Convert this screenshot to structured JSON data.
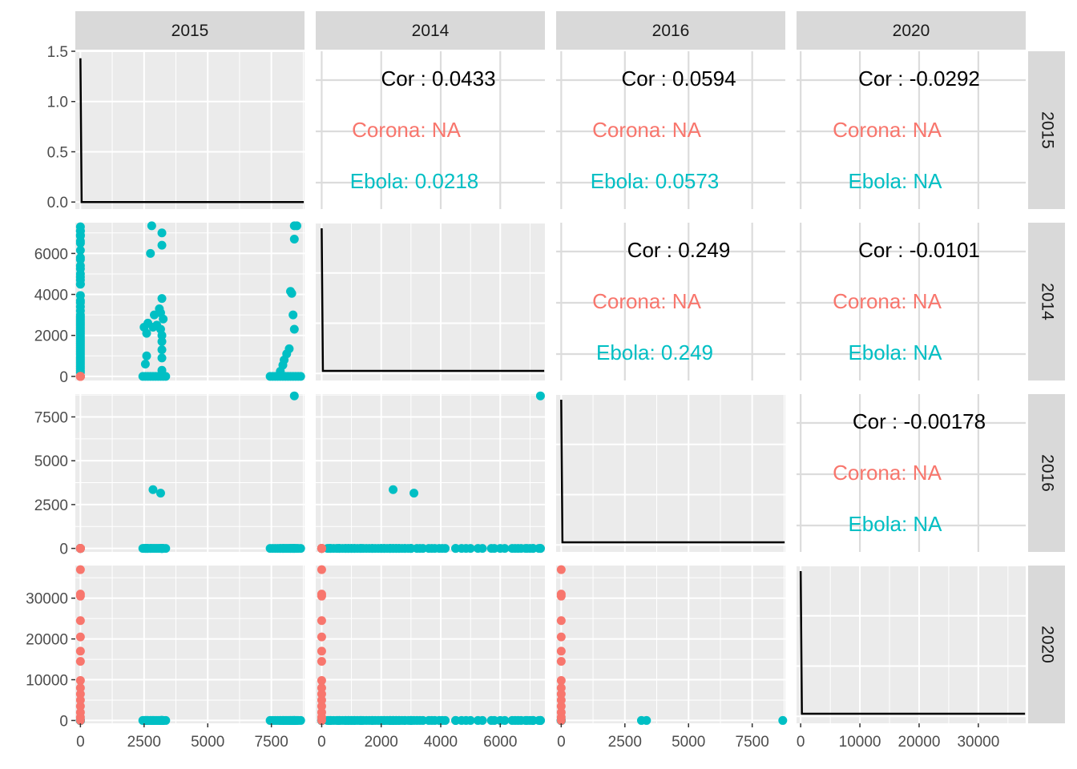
{
  "colors": {
    "panel_bg": "#ebebeb",
    "strip_bg": "#d9d9d9",
    "grid_major": "#ffffff",
    "grid_cor_panel": "#dcdcdc",
    "corona": "#f8766d",
    "ebola": "#00bfc4",
    "density_line": "#000000",
    "text": "#1a1a1a",
    "tick_text": "#4d4d4d"
  },
  "chart_data": {
    "type": "scatter",
    "variables": [
      "2015",
      "2014",
      "2016",
      "2020"
    ],
    "row_strip_labels": [
      "2015",
      "2014",
      "2016",
      "2020"
    ],
    "groups": [
      "Corona",
      "Ebola"
    ],
    "axis_ticks": {
      "2015": [
        0,
        2500,
        5000,
        7500
      ],
      "2014": [
        0,
        2000,
        4000,
        6000
      ],
      "2016": [
        0,
        2500,
        5000,
        7500
      ],
      "2020": [
        0,
        10000,
        20000,
        30000
      ]
    },
    "axis_tick_labels": {
      "2015": [
        "0",
        "2500",
        "5000",
        "7500"
      ],
      "2014": [
        "0",
        "2000",
        "4000",
        "6000"
      ],
      "2016": [
        "0",
        "2500",
        "5000",
        "7500"
      ],
      "2020": [
        "0",
        "10000",
        "20000",
        "30000"
      ]
    },
    "density_y_ticks": [
      0.0,
      0.5,
      1.0,
      1.5
    ],
    "density_y_tick_labels": [
      "0.0",
      "0.5",
      "1.0",
      "1.5"
    ],
    "correlations": [
      {
        "row": "2015",
        "col": "2014",
        "cor": "Cor : 0.0433",
        "corona": "Corona: NA",
        "ebola": "Ebola: 0.0218"
      },
      {
        "row": "2015",
        "col": "2016",
        "cor": "Cor : 0.0594",
        "corona": "Corona: NA",
        "ebola": "Ebola: 0.0573"
      },
      {
        "row": "2015",
        "col": "2020",
        "cor": "Cor : -0.0292",
        "corona": "Corona: NA",
        "ebola": "Ebola: NA"
      },
      {
        "row": "2014",
        "col": "2016",
        "cor": "Cor : 0.249",
        "corona": "Corona: NA",
        "ebola": "Ebola: 0.249"
      },
      {
        "row": "2014",
        "col": "2020",
        "cor": "Cor : -0.0101",
        "corona": "Corona: NA",
        "ebola": "Ebola: NA"
      },
      {
        "row": "2016",
        "col": "2020",
        "cor": "Cor : -0.00178",
        "corona": "Corona: NA",
        "ebola": "Ebola: NA"
      }
    ],
    "density_peaks": {
      "2015": 1.43
    },
    "observations": {
      "corona": [
        {
          "2015": 0,
          "2014": 0,
          "2016": 0,
          "2020": 37000
        },
        {
          "2015": 0,
          "2014": 0,
          "2016": 0,
          "2020": 31000
        },
        {
          "2015": 0,
          "2014": 0,
          "2016": 0,
          "2020": 30500
        },
        {
          "2015": 0,
          "2014": 0,
          "2016": 0,
          "2020": 24500
        },
        {
          "2015": 0,
          "2014": 0,
          "2016": 0,
          "2020": 20500
        },
        {
          "2015": 0,
          "2014": 0,
          "2016": 0,
          "2020": 17000
        },
        {
          "2015": 0,
          "2014": 0,
          "2016": 0,
          "2020": 14500
        },
        {
          "2015": 0,
          "2014": 0,
          "2016": 0,
          "2020": 9800
        },
        {
          "2015": 0,
          "2014": 0,
          "2016": 0,
          "2020": 8000
        },
        {
          "2015": 0,
          "2014": 0,
          "2016": 0,
          "2020": 6500
        },
        {
          "2015": 0,
          "2014": 0,
          "2016": 0,
          "2020": 5000
        },
        {
          "2015": 0,
          "2014": 0,
          "2016": 0,
          "2020": 3500
        },
        {
          "2015": 0,
          "2014": 0,
          "2016": 0,
          "2020": 2000
        },
        {
          "2015": 0,
          "2014": 0,
          "2016": 0,
          "2020": 800
        },
        {
          "2015": 0,
          "2014": 0,
          "2016": 0,
          "2020": 0
        }
      ],
      "ebola": [
        {
          "2015": 0,
          "2014": 7300,
          "2016": 0,
          "2020": 0
        },
        {
          "2015": 0,
          "2014": 7100,
          "2016": 0,
          "2020": 0
        },
        {
          "2015": 0,
          "2014": 6900,
          "2016": 0,
          "2020": 0
        },
        {
          "2015": 0,
          "2014": 6600,
          "2016": 0,
          "2020": 0
        },
        {
          "2015": 0,
          "2014": 5800,
          "2016": 0,
          "2020": 0
        },
        {
          "2015": 0,
          "2014": 5400,
          "2016": 0,
          "2020": 0
        },
        {
          "2015": 0,
          "2014": 5000,
          "2016": 0,
          "2020": 0
        },
        {
          "2015": 0,
          "2014": 4700,
          "2016": 0,
          "2020": 0
        },
        {
          "2015": 0,
          "2014": 4500,
          "2016": 0,
          "2020": 0
        },
        {
          "2015": 0,
          "2014": 3700,
          "2016": 0,
          "2020": 0
        },
        {
          "2015": 0,
          "2014": 3400,
          "2016": 0,
          "2020": 0
        },
        {
          "2015": 0,
          "2014": 3200,
          "2016": 0,
          "2020": 0
        },
        {
          "2015": 0,
          "2014": 3000,
          "2016": 0,
          "2020": 0
        },
        {
          "2015": 0,
          "2014": 2800,
          "2016": 0,
          "2020": 0
        },
        {
          "2015": 0,
          "2014": 2600,
          "2016": 0,
          "2020": 0
        },
        {
          "2015": 0,
          "2014": 2400,
          "2016": 0,
          "2020": 0
        },
        {
          "2015": 0,
          "2014": 2200,
          "2016": 0,
          "2020": 0
        },
        {
          "2015": 0,
          "2014": 2000,
          "2016": 0,
          "2020": 0
        },
        {
          "2015": 0,
          "2014": 1800,
          "2016": 0,
          "2020": 0
        },
        {
          "2015": 0,
          "2014": 1600,
          "2016": 0,
          "2020": 0
        },
        {
          "2015": 0,
          "2014": 1400,
          "2016": 0,
          "2020": 0
        },
        {
          "2015": 0,
          "2014": 1200,
          "2016": 0,
          "2020": 0
        },
        {
          "2015": 0,
          "2014": 1000,
          "2016": 0,
          "2020": 0
        },
        {
          "2015": 0,
          "2014": 800,
          "2016": 0,
          "2020": 0
        },
        {
          "2015": 0,
          "2014": 600,
          "2016": 0,
          "2020": 0
        },
        {
          "2015": 0,
          "2014": 400,
          "2016": 0,
          "2020": 0
        },
        {
          "2015": 0,
          "2014": 200,
          "2016": 0,
          "2020": 0
        },
        {
          "2015": 2800,
          "2014": 7350,
          "2016": 0,
          "2020": 0
        },
        {
          "2015": 3200,
          "2014": 7000,
          "2016": 0,
          "2020": 0
        },
        {
          "2015": 3200,
          "2014": 6400,
          "2016": 0,
          "2020": 0
        },
        {
          "2015": 2750,
          "2014": 6000,
          "2016": 0,
          "2020": 0
        },
        {
          "2015": 3200,
          "2014": 3800,
          "2016": 0,
          "2020": 0
        },
        {
          "2015": 3100,
          "2014": 3300,
          "2016": 0,
          "2020": 0
        },
        {
          "2015": 2900,
          "2014": 3000,
          "2016": 0,
          "2020": 0
        },
        {
          "2015": 3250,
          "2014": 2800,
          "2016": 0,
          "2020": 0
        },
        {
          "2015": 2650,
          "2014": 2600,
          "2016": 0,
          "2020": 0
        },
        {
          "2015": 3000,
          "2014": 2500,
          "2016": 0,
          "2020": 0
        },
        {
          "2015": 2500,
          "2014": 2400,
          "2016": 0,
          "2020": 0
        },
        {
          "2015": 3150,
          "2014": 2300,
          "2016": 0,
          "2020": 0
        },
        {
          "2015": 2600,
          "2014": 2100,
          "2016": 0,
          "2020": 0
        },
        {
          "2015": 3200,
          "2014": 2000,
          "2016": 0,
          "2020": 0
        },
        {
          "2015": 3200,
          "2014": 1700,
          "2016": 0,
          "2020": 0
        },
        {
          "2015": 3200,
          "2014": 1300,
          "2016": 0,
          "2020": 0
        },
        {
          "2015": 2600,
          "2014": 1000,
          "2016": 0,
          "2020": 0
        },
        {
          "2015": 3200,
          "2014": 900,
          "2016": 0,
          "2020": 0
        },
        {
          "2015": 2550,
          "2014": 600,
          "2016": 0,
          "2020": 0
        },
        {
          "2015": 3200,
          "2014": 300,
          "2016": 0,
          "2020": 0
        },
        {
          "2015": 8500,
          "2014": 7350,
          "2016": 0,
          "2020": 0
        },
        {
          "2015": 8400,
          "2014": 6700,
          "2016": 0,
          "2020": 0
        },
        {
          "2015": 8250,
          "2014": 4150,
          "2016": 0,
          "2020": 0
        },
        {
          "2015": 8300,
          "2014": 4050,
          "2016": 0,
          "2020": 0
        },
        {
          "2015": 8350,
          "2014": 3000,
          "2016": 0,
          "2020": 0
        },
        {
          "2015": 8400,
          "2014": 2300,
          "2016": 0,
          "2020": 0
        },
        {
          "2015": 8200,
          "2014": 1350,
          "2016": 0,
          "2020": 0
        },
        {
          "2015": 8100,
          "2014": 1100,
          "2016": 0,
          "2020": 0
        },
        {
          "2015": 8000,
          "2014": 800,
          "2016": 0,
          "2020": 0
        },
        {
          "2015": 7950,
          "2014": 550,
          "2016": 0,
          "2020": 0
        },
        {
          "2015": 7850,
          "2014": 250,
          "2016": 0,
          "2020": 0
        },
        {
          "2015": 2450,
          "2014": 0,
          "2016": 0,
          "2020": 0
        },
        {
          "2015": 2550,
          "2014": 0,
          "2016": 0,
          "2020": 0
        },
        {
          "2015": 2650,
          "2014": 0,
          "2016": 0,
          "2020": 0
        },
        {
          "2015": 2750,
          "2014": 0,
          "2016": 0,
          "2020": 0
        },
        {
          "2015": 2850,
          "2014": 0,
          "2016": 0,
          "2020": 0
        },
        {
          "2015": 2950,
          "2014": 0,
          "2016": 0,
          "2020": 0
        },
        {
          "2015": 3050,
          "2014": 0,
          "2016": 0,
          "2020": 0
        },
        {
          "2015": 3150,
          "2014": 0,
          "2016": 0,
          "2020": 0
        },
        {
          "2015": 3250,
          "2014": 0,
          "2016": 0,
          "2020": 0
        },
        {
          "2015": 3350,
          "2014": 0,
          "2016": 0,
          "2020": 0
        },
        {
          "2015": 7450,
          "2014": 0,
          "2016": 0,
          "2020": 0
        },
        {
          "2015": 7550,
          "2014": 0,
          "2016": 0,
          "2020": 0
        },
        {
          "2015": 7650,
          "2014": 0,
          "2016": 0,
          "2020": 0
        },
        {
          "2015": 7750,
          "2014": 0,
          "2016": 0,
          "2020": 0
        },
        {
          "2015": 7850,
          "2014": 0,
          "2016": 0,
          "2020": 0
        },
        {
          "2015": 7950,
          "2014": 0,
          "2016": 0,
          "2020": 0
        },
        {
          "2015": 8050,
          "2014": 0,
          "2016": 0,
          "2020": 0
        },
        {
          "2015": 8150,
          "2014": 0,
          "2016": 0,
          "2020": 0
        },
        {
          "2015": 8250,
          "2014": 0,
          "2016": 0,
          "2020": 0
        },
        {
          "2015": 8350,
          "2014": 0,
          "2016": 0,
          "2020": 0
        },
        {
          "2015": 8450,
          "2014": 0,
          "2016": 0,
          "2020": 0
        },
        {
          "2015": 8550,
          "2014": 0,
          "2016": 0,
          "2020": 0
        },
        {
          "2015": 8650,
          "2014": 0,
          "2016": 0,
          "2020": 0
        },
        {
          "2015": 8400,
          "2014": 7350,
          "2016": 8700,
          "2020": 0
        },
        {
          "2015": 2850,
          "2014": 2400,
          "2016": 3350,
          "2020": 0
        },
        {
          "2015": 3150,
          "2014": 3100,
          "2016": 3150,
          "2020": 0
        },
        {
          "2015": 0,
          "2014": 300,
          "2016": 0,
          "2020": 0
        },
        {
          "2015": 0,
          "2014": 500,
          "2016": 0,
          "2020": 0
        },
        {
          "2015": 0,
          "2014": 700,
          "2016": 0,
          "2020": 0
        },
        {
          "2015": 0,
          "2014": 900,
          "2016": 0,
          "2020": 0
        },
        {
          "2015": 0,
          "2014": 1100,
          "2016": 0,
          "2020": 0
        },
        {
          "2015": 0,
          "2014": 1300,
          "2016": 0,
          "2020": 0
        },
        {
          "2015": 0,
          "2014": 1500,
          "2016": 0,
          "2020": 0
        },
        {
          "2015": 0,
          "2014": 1700,
          "2016": 0,
          "2020": 0
        },
        {
          "2015": 0,
          "2014": 1900,
          "2016": 0,
          "2020": 0
        },
        {
          "2015": 0,
          "2014": 2100,
          "2016": 0,
          "2020": 0
        },
        {
          "2015": 0,
          "2014": 2300,
          "2016": 0,
          "2020": 0
        },
        {
          "2015": 0,
          "2014": 2500,
          "2016": 0,
          "2020": 0
        },
        {
          "2015": 0,
          "2014": 2700,
          "2016": 0,
          "2020": 0
        },
        {
          "2015": 0,
          "2014": 2900,
          "2016": 0,
          "2020": 0
        },
        {
          "2015": 0,
          "2014": 3600,
          "2016": 0,
          "2020": 0
        },
        {
          "2015": 0,
          "2014": 3950,
          "2016": 0,
          "2020": 0
        },
        {
          "2015": 0,
          "2014": 4500,
          "2016": 0,
          "2020": 0
        },
        {
          "2015": 0,
          "2014": 4850,
          "2016": 0,
          "2020": 0
        },
        {
          "2015": 0,
          "2014": 5250,
          "2016": 0,
          "2020": 0
        },
        {
          "2015": 0,
          "2014": 5700,
          "2016": 0,
          "2020": 0
        },
        {
          "2015": 0,
          "2014": 6150,
          "2016": 0,
          "2020": 0
        },
        {
          "2015": 0,
          "2014": 6500,
          "2016": 0,
          "2020": 0
        },
        {
          "2015": 0,
          "2014": 6850,
          "2016": 0,
          "2020": 0
        },
        {
          "2015": 0,
          "2014": 7100,
          "2016": 0,
          "2020": 0
        }
      ]
    }
  }
}
